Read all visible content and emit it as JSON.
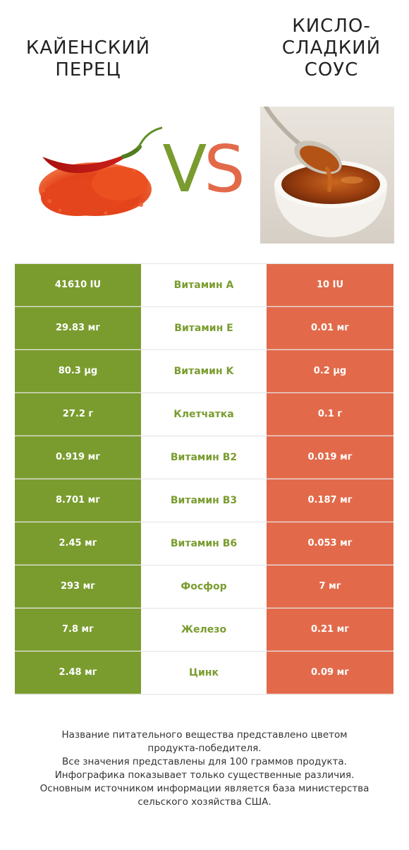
{
  "header": {
    "left_title": [
      "КАЙЕНСКИЙ",
      "ПЕРЕЦ"
    ],
    "right_title": [
      "КИСЛО-",
      "СЛАДКИЙ",
      "СОУС"
    ],
    "vs_v": "V",
    "vs_s": "S"
  },
  "colors": {
    "winner_left": "#7a9c2f",
    "winner_right": "#e26a4a"
  },
  "nutrients": [
    {
      "left": "41610 IU",
      "name": "Витамин A",
      "right": "10 IU"
    },
    {
      "left": "29.83 мг",
      "name": "Витамин E",
      "right": "0.01 мг"
    },
    {
      "left": "80.3 µg",
      "name": "Витамин K",
      "right": "0.2 µg"
    },
    {
      "left": "27.2 г",
      "name": "Клетчатка",
      "right": "0.1 г"
    },
    {
      "left": "0.919 мг",
      "name": "Витамин B2",
      "right": "0.019 мг"
    },
    {
      "left": "8.701 мг",
      "name": "Витамин B3",
      "right": "0.187 мг"
    },
    {
      "left": "2.45 мг",
      "name": "Витамин B6",
      "right": "0.053 мг"
    },
    {
      "left": "293 мг",
      "name": "Фосфор",
      "right": "7 мг"
    },
    {
      "left": "7.8 мг",
      "name": "Железо",
      "right": "0.21 мг"
    },
    {
      "left": "2.48 мг",
      "name": "Цинк",
      "right": "0.09 мг"
    }
  ],
  "footnote": [
    "Название питательного вещества представлено цветом",
    "продукта-победителя.",
    "Все значения представлены для 100 граммов продукта.",
    "Инфографика показывает только существенные различия.",
    "Основным источником информации является база министерства",
    "сельского хозяйства США."
  ]
}
